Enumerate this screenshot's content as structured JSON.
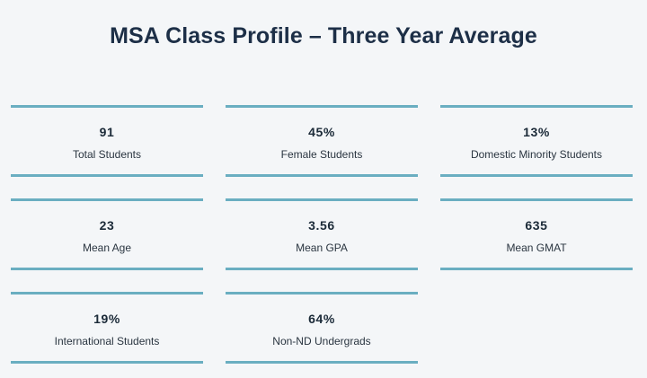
{
  "title": "MSA Class Profile – Three Year Average",
  "stats": [
    {
      "value": "91",
      "label": "Total Students"
    },
    {
      "value": "45%",
      "label": "Female Students"
    },
    {
      "value": "13%",
      "label": "Domestic Minority Students"
    },
    {
      "value": "23",
      "label": "Mean Age"
    },
    {
      "value": "3.56",
      "label": "Mean GPA"
    },
    {
      "value": "635",
      "label": "Mean GMAT"
    },
    {
      "value": "19%",
      "label": "International Students"
    },
    {
      "value": "64%",
      "label": "Non-ND Undergrads"
    }
  ],
  "colors": {
    "accent_rule": "#6aaec1",
    "title": "#1d2f47",
    "background": "#f4f6f8"
  }
}
